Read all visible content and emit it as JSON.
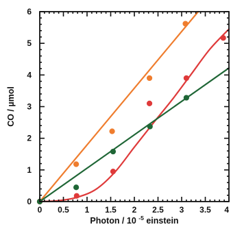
{
  "chart_data": {
    "type": "scatter",
    "title": "",
    "xlabel": "Photon / 10-5einstein",
    "xlabel_parts": {
      "prefix": "Photon / 10",
      "superscript": "-5",
      "suffix": "einstein"
    },
    "ylabel": "CO / µmol",
    "xlim": [
      0,
      4
    ],
    "ylim": [
      0,
      6
    ],
    "xticks": [
      "0",
      "0.5",
      "1",
      "1.5",
      "2",
      "2.5",
      "3",
      "3.5",
      "4"
    ],
    "yticks": [
      "0",
      "1",
      "2",
      "3",
      "4",
      "5",
      "6"
    ],
    "grid": false,
    "legend": "none",
    "series": [
      {
        "color": "#ef7d2e",
        "points": [
          {
            "x": 0.0,
            "y": 0.0
          },
          {
            "x": 0.77,
            "y": 1.18
          },
          {
            "x": 1.53,
            "y": 2.22
          },
          {
            "x": 2.32,
            "y": 3.9
          },
          {
            "x": 3.08,
            "y": 5.62
          }
        ],
        "fit": {
          "kind": "line",
          "points": [
            {
              "x": 0.0,
              "y": 0.0
            },
            {
              "x": 3.35,
              "y": 6.0
            }
          ]
        }
      },
      {
        "color": "#df3a3a",
        "points": [
          {
            "x": 0.0,
            "y": 0.0
          },
          {
            "x": 0.78,
            "y": 0.18
          },
          {
            "x": 1.55,
            "y": 0.95
          },
          {
            "x": 2.32,
            "y": 3.1
          },
          {
            "x": 3.1,
            "y": 3.9
          },
          {
            "x": 3.88,
            "y": 5.17
          }
        ],
        "fit": {
          "kind": "curve",
          "points": [
            {
              "x": 0.0,
              "y": 0.0
            },
            {
              "x": 0.4,
              "y": 0.03
            },
            {
              "x": 0.8,
              "y": 0.14
            },
            {
              "x": 1.2,
              "y": 0.4
            },
            {
              "x": 1.6,
              "y": 0.95
            },
            {
              "x": 2.0,
              "y": 1.72
            },
            {
              "x": 2.4,
              "y": 2.48
            },
            {
              "x": 2.8,
              "y": 3.22
            },
            {
              "x": 3.2,
              "y": 4.02
            },
            {
              "x": 3.6,
              "y": 4.82
            },
            {
              "x": 4.0,
              "y": 5.45
            }
          ]
        }
      },
      {
        "color": "#1f6636",
        "points": [
          {
            "x": 0.0,
            "y": 0.0
          },
          {
            "x": 0.77,
            "y": 0.45
          },
          {
            "x": 1.55,
            "y": 1.58
          },
          {
            "x": 2.33,
            "y": 2.37
          },
          {
            "x": 3.1,
            "y": 3.28
          }
        ],
        "fit": {
          "kind": "line",
          "points": [
            {
              "x": 0.0,
              "y": 0.0
            },
            {
              "x": 4.0,
              "y": 4.22
            }
          ]
        }
      }
    ]
  }
}
